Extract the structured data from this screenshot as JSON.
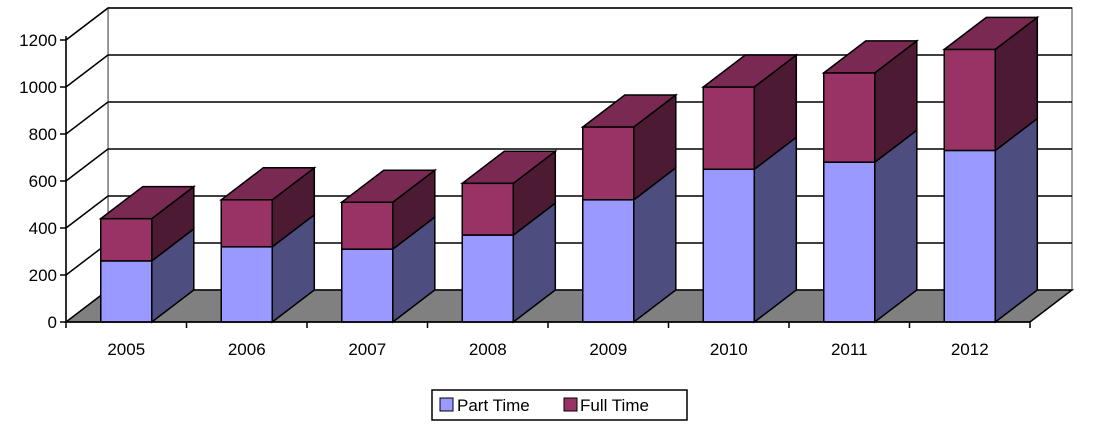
{
  "chart_data": {
    "type": "bar",
    "stacked": true,
    "three_d": true,
    "categories": [
      "2005",
      "2006",
      "2007",
      "2008",
      "2009",
      "2010",
      "2011",
      "2012"
    ],
    "series": [
      {
        "name": "Part Time",
        "color": "#9999FF",
        "side_color": "#4D4D80",
        "top_color": "#7A7ACC",
        "values": [
          260,
          320,
          310,
          370,
          520,
          650,
          680,
          730
        ]
      },
      {
        "name": "Full Time",
        "color": "#993366",
        "side_color": "#4D1A33",
        "top_color": "#7A2952",
        "values": [
          180,
          200,
          200,
          220,
          310,
          350,
          380,
          430
        ]
      }
    ],
    "yticks": [
      "0",
      "200",
      "400",
      "600",
      "800",
      "1000",
      "1200"
    ],
    "ylim": [
      0,
      1200
    ],
    "grid": true,
    "legend_position": "bottom",
    "colors": {
      "floor": "#808080",
      "grid": "#000000",
      "wall": "#ffffff"
    }
  }
}
